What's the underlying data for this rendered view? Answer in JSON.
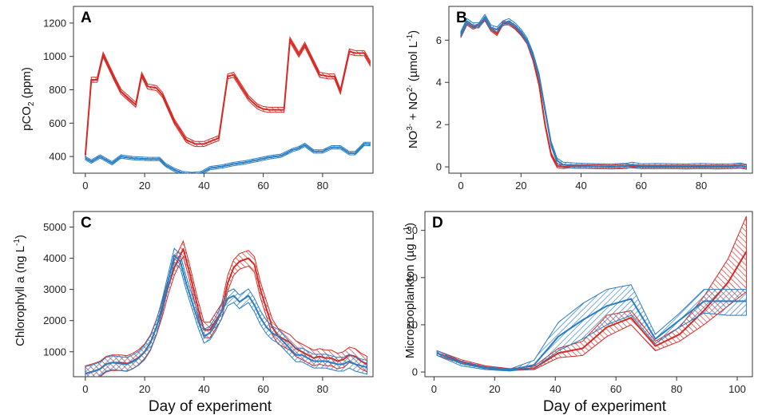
{
  "colors": {
    "red": "#d62a26",
    "blue": "#2a7ec2",
    "frame": "#333333"
  },
  "chart_data": [
    {
      "panel": "A",
      "type": "line",
      "ylabel": "pCO2 (ppm)",
      "xlabel": "",
      "xlim": [
        -4,
        97
      ],
      "ylim": [
        300,
        1300
      ],
      "xticks": [
        0,
        20,
        40,
        60,
        80
      ],
      "yticks": [
        400,
        600,
        800,
        1000,
        1200
      ],
      "series": [
        {
          "color": "red",
          "band": 15,
          "x": [
            0,
            2,
            4,
            6,
            10,
            12,
            17,
            19,
            21,
            24,
            26,
            30,
            34,
            37,
            40,
            42,
            45,
            48,
            50,
            55,
            58,
            60,
            62,
            67,
            69,
            72,
            74,
            79,
            82,
            84,
            86,
            89,
            91,
            94,
            96
          ],
          "y": [
            410,
            860,
            860,
            1010,
            860,
            790,
            710,
            890,
            820,
            810,
            770,
            610,
            500,
            475,
            475,
            490,
            510,
            880,
            890,
            750,
            700,
            685,
            680,
            680,
            1100,
            1010,
            1070,
            890,
            880,
            880,
            790,
            1030,
            1020,
            1020,
            960
          ]
        },
        {
          "color": "blue",
          "band": 10,
          "x": [
            0,
            2,
            5,
            9,
            12,
            16,
            21,
            25,
            27,
            30,
            33,
            36,
            39,
            42,
            46,
            50,
            54,
            58,
            62,
            66,
            70,
            72,
            74,
            77,
            80,
            83,
            86,
            89,
            91,
            94,
            96
          ],
          "y": [
            390,
            370,
            400,
            360,
            400,
            390,
            385,
            385,
            350,
            320,
            300,
            295,
            300,
            330,
            340,
            355,
            365,
            380,
            395,
            405,
            440,
            450,
            470,
            430,
            430,
            455,
            455,
            420,
            420,
            475,
            475
          ]
        }
      ]
    },
    {
      "panel": "B",
      "type": "line",
      "ylabel": "NO3- + NO2- (µmol L-1)",
      "xlabel": "",
      "xlim": [
        -4,
        97
      ],
      "ylim": [
        -0.3,
        7.6
      ],
      "xticks": [
        0,
        20,
        40,
        60,
        80
      ],
      "yticks": [
        0,
        2,
        4,
        6
      ],
      "series": [
        {
          "color": "red",
          "band": 0.08,
          "x": [
            0,
            2,
            4,
            6,
            8,
            10,
            12,
            14,
            16,
            18,
            20,
            22,
            24,
            26,
            28,
            30,
            32,
            34,
            36,
            38,
            40,
            45,
            50,
            55,
            60,
            65,
            70,
            75,
            80,
            85,
            90,
            93,
            95
          ],
          "y": [
            6.2,
            6.8,
            6.6,
            6.7,
            7.0,
            6.5,
            6.3,
            6.8,
            6.8,
            6.6,
            6.3,
            5.9,
            5.1,
            3.9,
            2.0,
            0.6,
            0.05,
            0.0,
            0.03,
            0.02,
            0.02,
            0.02,
            0.0,
            0.05,
            0.0,
            0.0,
            0.0,
            0.0,
            0.0,
            0.0,
            0.0,
            0.05,
            0.0
          ]
        },
        {
          "color": "blue",
          "band": 0.12,
          "x": [
            0,
            2,
            4,
            6,
            8,
            10,
            12,
            14,
            16,
            18,
            20,
            22,
            24,
            26,
            28,
            30,
            32,
            34,
            36,
            38,
            40,
            45,
            50,
            55,
            57,
            60,
            65,
            70,
            75,
            80,
            85,
            90,
            93,
            95
          ],
          "y": [
            6.3,
            6.9,
            6.7,
            6.7,
            7.1,
            6.6,
            6.5,
            6.8,
            6.9,
            6.7,
            6.4,
            6.0,
            5.3,
            4.3,
            2.7,
            1.1,
            0.3,
            0.1,
            0.08,
            0.06,
            0.05,
            0.03,
            0.02,
            0.04,
            0.1,
            0.03,
            0.04,
            0.03,
            0.02,
            0.04,
            0.02,
            0.03,
            0.06,
            0.0
          ]
        }
      ]
    },
    {
      "panel": "C",
      "type": "line",
      "ylabel": "Chlorophyll a (ng L-1)",
      "xlabel": "Day of experiment",
      "xlim": [
        -4,
        97
      ],
      "ylim": [
        200,
        5500
      ],
      "xticks": [
        0,
        20,
        40,
        60,
        80
      ],
      "yticks": [
        1000,
        2000,
        3000,
        4000,
        5000
      ],
      "series": [
        {
          "color": "red",
          "band": 250,
          "x": [
            0,
            3,
            5,
            7,
            9,
            12,
            14,
            16,
            18,
            20,
            22,
            24,
            26,
            28,
            30,
            33,
            35,
            38,
            40,
            42,
            44,
            46,
            48,
            50,
            52,
            55,
            57,
            59,
            61,
            63,
            65,
            67,
            69,
            71,
            73,
            75,
            77,
            79,
            81,
            83,
            85,
            87,
            89,
            91,
            93,
            95
          ],
          "y": [
            300,
            380,
            450,
            600,
            650,
            650,
            620,
            700,
            820,
            1000,
            1300,
            1800,
            2400,
            3100,
            3700,
            4300,
            3600,
            2400,
            1700,
            1700,
            2000,
            2300,
            3200,
            3700,
            3900,
            4000,
            3800,
            3000,
            2400,
            1800,
            1500,
            1400,
            1300,
            1100,
            1000,
            900,
            800,
            850,
            800,
            800,
            700,
            750,
            900,
            850,
            700,
            600
          ]
        },
        {
          "color": "blue",
          "band": 220,
          "x": [
            0,
            3,
            5,
            7,
            9,
            12,
            14,
            16,
            18,
            20,
            22,
            24,
            26,
            28,
            30,
            32,
            34,
            36,
            38,
            40,
            42,
            44,
            46,
            48,
            50,
            52,
            55,
            57,
            59,
            61,
            63,
            65,
            67,
            69,
            71,
            73,
            75,
            77,
            79,
            81,
            83,
            85,
            87,
            89,
            91,
            93,
            95
          ],
          "y": [
            300,
            380,
            450,
            600,
            650,
            620,
            600,
            680,
            800,
            1000,
            1300,
            1800,
            2500,
            3300,
            4100,
            3900,
            3200,
            2600,
            2000,
            1500,
            1600,
            1900,
            2300,
            2700,
            2800,
            2600,
            2800,
            2500,
            2100,
            1800,
            1600,
            1500,
            1300,
            1100,
            900,
            900,
            800,
            700,
            700,
            700,
            650,
            600,
            600,
            700,
            600,
            550,
            500
          ]
        }
      ]
    },
    {
      "panel": "D",
      "type": "line",
      "ylabel": "Microzooplankton (µg L-1)",
      "xlabel": "Day of experiment",
      "xlim": [
        -3,
        105
      ],
      "ylim": [
        -1,
        34
      ],
      "xticks": [
        0,
        20,
        40,
        60,
        80,
        100
      ],
      "yticks": [
        0,
        10,
        20,
        30
      ],
      "series": [
        {
          "color": "red",
          "x": [
            1,
            9,
            17,
            25,
            33,
            41,
            49,
            57,
            65,
            73,
            81,
            89,
            97,
            103
          ],
          "y": [
            4,
            2.2,
            1.0,
            0.5,
            0.8,
            4.0,
            5.0,
            9.5,
            11.5,
            5.5,
            8.0,
            13.0,
            19.0,
            25.5
          ],
          "lower": [
            3.5,
            1.8,
            0.7,
            0.3,
            0.5,
            3.0,
            3.5,
            7.5,
            10.0,
            4.5,
            6.5,
            10.0,
            14.0,
            17.0
          ],
          "upper": [
            4.5,
            2.6,
            1.3,
            0.7,
            1.2,
            5.0,
            6.5,
            12.0,
            13.0,
            6.5,
            9.5,
            16.0,
            24.0,
            33.0
          ]
        },
        {
          "color": "blue",
          "x": [
            1,
            9,
            17,
            25,
            33,
            41,
            49,
            57,
            65,
            73,
            81,
            89,
            97,
            103
          ],
          "y": [
            4,
            1.8,
            0.8,
            0.4,
            1.5,
            7.5,
            11.0,
            14.0,
            15.5,
            7.0,
            11.0,
            15.0,
            15.0,
            15.0
          ],
          "lower": [
            3.5,
            1.3,
            0.5,
            0.2,
            0.8,
            4.5,
            7.0,
            10.0,
            12.0,
            6.0,
            9.5,
            12.5,
            12.0,
            12.0
          ],
          "upper": [
            4.5,
            2.3,
            1.1,
            0.6,
            2.5,
            10.5,
            14.5,
            17.5,
            18.5,
            8.0,
            12.5,
            17.5,
            17.5,
            17.5
          ]
        }
      ]
    }
  ]
}
